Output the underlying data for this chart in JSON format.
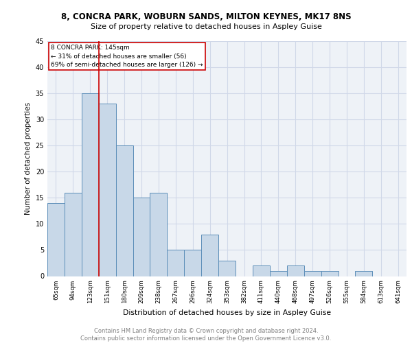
{
  "title1": "8, CONCRA PARK, WOBURN SANDS, MILTON KEYNES, MK17 8NS",
  "title2": "Size of property relative to detached houses in Aspley Guise",
  "xlabel": "Distribution of detached houses by size in Aspley Guise",
  "ylabel": "Number of detached properties",
  "categories": [
    "65sqm",
    "94sqm",
    "123sqm",
    "151sqm",
    "180sqm",
    "209sqm",
    "238sqm",
    "267sqm",
    "296sqm",
    "324sqm",
    "353sqm",
    "382sqm",
    "411sqm",
    "440sqm",
    "468sqm",
    "497sqm",
    "526sqm",
    "555sqm",
    "584sqm",
    "613sqm",
    "641sqm"
  ],
  "values": [
    14,
    16,
    35,
    33,
    25,
    15,
    16,
    5,
    5,
    8,
    3,
    0,
    2,
    1,
    2,
    1,
    1,
    0,
    1,
    0,
    0
  ],
  "bar_color": "#c8d8e8",
  "bar_edge_color": "#5b8db8",
  "vline_x_index": 2.5,
  "vline_color": "#cc0000",
  "annotation_title": "8 CONCRA PARK: 145sqm",
  "annotation_line1": "← 31% of detached houses are smaller (56)",
  "annotation_line2": "69% of semi-detached houses are larger (126) →",
  "annotation_box_color": "#ffffff",
  "annotation_box_edge": "#cc0000",
  "ylim": [
    0,
    45
  ],
  "yticks": [
    0,
    5,
    10,
    15,
    20,
    25,
    30,
    35,
    40,
    45
  ],
  "footer": "Contains HM Land Registry data © Crown copyright and database right 2024.\nContains public sector information licensed under the Open Government Licence v3.0.",
  "grid_color": "#d0d8e8",
  "background_color": "#eef2f7"
}
